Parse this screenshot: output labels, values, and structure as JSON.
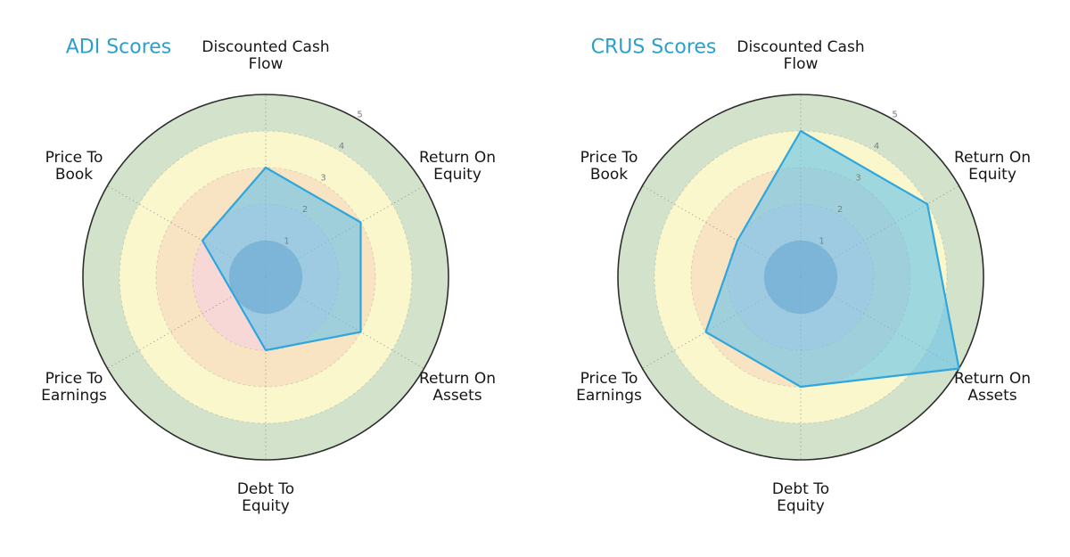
{
  "figure": {
    "background": "#ffffff",
    "title_color": "#2d9fc9",
    "grid": {
      "spoke_color": "#8a8a8a",
      "ring_color": "#8c8c8c",
      "outer_circle_color": "#2e2e2e",
      "tick_label_color": "#7f7f7f",
      "axis_label_color": "#151515"
    }
  },
  "chart_data": [
    {
      "type": "radar",
      "title": "ADI Scores",
      "title_color": "#2d9fc9",
      "categories": [
        "Discounted Cash\nFlow",
        "Return On\nEquity",
        "Return On\nAssets",
        "Debt To\nEquity",
        "Price To\nEarnings",
        "Price To\nBook"
      ],
      "series": [
        {
          "name": "ADI",
          "values": [
            3,
            3,
            3,
            2,
            1,
            2
          ]
        }
      ],
      "r_axis": {
        "min": 0,
        "max": 5,
        "ticks": [
          1,
          2,
          3,
          4,
          5
        ],
        "tick_label_angle_deg": 60
      },
      "zones": [
        {
          "from": 4,
          "to": 5,
          "color": "#d3e3cb",
          "meaning": "zone-4-5"
        },
        {
          "from": 3,
          "to": 4,
          "color": "#faf7cd",
          "meaning": "zone-3-4"
        },
        {
          "from": 2,
          "to": 3,
          "color": "#f8e3c3",
          "meaning": "zone-2-3"
        },
        {
          "from": 1,
          "to": 2,
          "color": "#f8d8d6",
          "meaning": "zone-1-2"
        },
        {
          "from": 0,
          "to": 1,
          "color": "#9d9fba",
          "meaning": "zone-0-1"
        }
      ],
      "series_style": {
        "fill": "#67c3e9",
        "fill_opacity": 0.62,
        "stroke": "#2fa6dc",
        "stroke_width": 2.2
      },
      "legend": "none",
      "grid_on": true
    },
    {
      "type": "radar",
      "title": "CRUS Scores",
      "title_color": "#2d9fc9",
      "categories": [
        "Discounted Cash\nFlow",
        "Return On\nEquity",
        "Return On\nAssets",
        "Debt To\nEquity",
        "Price To\nEarnings",
        "Price To\nBook"
      ],
      "series": [
        {
          "name": "CRUS",
          "values": [
            4,
            4,
            5,
            3,
            3,
            2
          ]
        }
      ],
      "r_axis": {
        "min": 0,
        "max": 5,
        "ticks": [
          1,
          2,
          3,
          4,
          5
        ],
        "tick_label_angle_deg": 60
      },
      "zones": [
        {
          "from": 4,
          "to": 5,
          "color": "#d3e3cb",
          "meaning": "zone-4-5"
        },
        {
          "from": 3,
          "to": 4,
          "color": "#faf7cd",
          "meaning": "zone-3-4"
        },
        {
          "from": 2,
          "to": 3,
          "color": "#f8e3c3",
          "meaning": "zone-2-3"
        },
        {
          "from": 1,
          "to": 2,
          "color": "#f8d8d6",
          "meaning": "zone-1-2"
        },
        {
          "from": 0,
          "to": 1,
          "color": "#9d9fba",
          "meaning": "zone-0-1"
        }
      ],
      "series_style": {
        "fill": "#67c3e9",
        "fill_opacity": 0.62,
        "stroke": "#2fa6dc",
        "stroke_width": 2.2
      },
      "legend": "none",
      "grid_on": true
    }
  ]
}
